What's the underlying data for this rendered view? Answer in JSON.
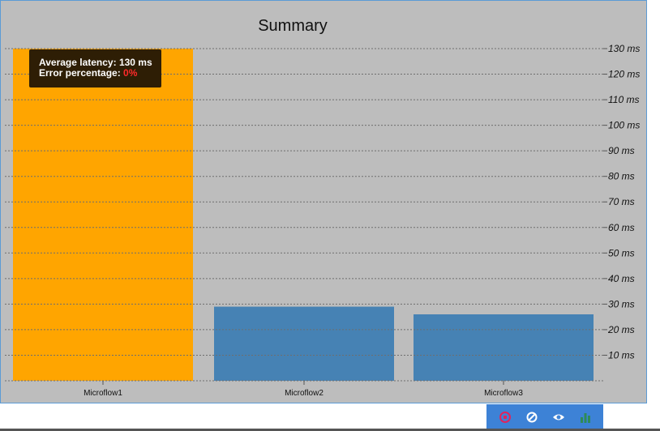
{
  "chart_data": {
    "type": "bar",
    "title": "Summary",
    "categories": [
      "Microflow1",
      "Microflow2",
      "Microflow3"
    ],
    "values": [
      130,
      29,
      26
    ],
    "unit": "ms",
    "ylim": [
      0,
      130
    ],
    "yticks": [
      10,
      20,
      30,
      40,
      50,
      60,
      70,
      80,
      90,
      100,
      110,
      120,
      130
    ],
    "ytick_labels": [
      "10 ms",
      "20 ms",
      "30 ms",
      "40 ms",
      "50 ms",
      "60 ms",
      "70 ms",
      "80 ms",
      "90 ms",
      "100 ms",
      "110 ms",
      "120 ms",
      "130 ms"
    ],
    "grid": true,
    "colors": [
      "#ffa500",
      "#4682b4",
      "#4682b4"
    ]
  },
  "tooltip": {
    "latency_label": "Average latency:",
    "latency_value": "130 ms",
    "error_label": "Error percentage:",
    "error_value": "0%"
  },
  "toolbar": [
    {
      "icon": "stop-icon",
      "color": "#e0245e"
    },
    {
      "icon": "ban-icon",
      "color": "#ffffff"
    },
    {
      "icon": "eye-icon",
      "color": "#ffffff"
    },
    {
      "icon": "bar-chart-icon",
      "color": "#2e8b57"
    }
  ]
}
